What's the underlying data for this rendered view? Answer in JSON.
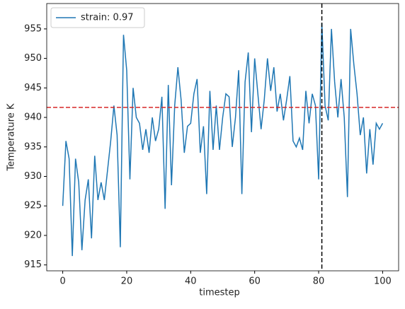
{
  "chart_data": {
    "type": "line",
    "x_label": "timestep",
    "y_label": "Temperature K",
    "x": [
      0,
      1,
      2,
      3,
      4,
      5,
      6,
      7,
      8,
      9,
      10,
      11,
      12,
      13,
      14,
      15,
      16,
      17,
      18,
      19,
      20,
      21,
      22,
      23,
      24,
      25,
      26,
      27,
      28,
      29,
      30,
      31,
      32,
      33,
      34,
      35,
      36,
      37,
      38,
      39,
      40,
      41,
      42,
      43,
      44,
      45,
      46,
      47,
      48,
      49,
      50,
      51,
      52,
      53,
      54,
      55,
      56,
      57,
      58,
      59,
      60,
      61,
      62,
      63,
      64,
      65,
      66,
      67,
      68,
      69,
      70,
      71,
      72,
      73,
      74,
      75,
      76,
      77,
      78,
      79,
      80,
      81,
      82,
      83,
      84,
      85,
      86,
      87,
      88,
      89,
      90,
      91,
      92,
      93,
      94,
      95,
      96,
      97,
      98,
      99,
      100
    ],
    "series": [
      {
        "name": "strain: 0.97",
        "color": "#1f77b4",
        "values": [
          925,
          936,
          933,
          916.5,
          933,
          929,
          917.5,
          926,
          929.5,
          919.5,
          933.5,
          926,
          929,
          926,
          931,
          936,
          942,
          937,
          918,
          954,
          948,
          929.5,
          945,
          940,
          939,
          934.5,
          938,
          934,
          940,
          936,
          938,
          943.5,
          924.5,
          945.5,
          928.5,
          942,
          948.5,
          943,
          934,
          938.5,
          939,
          944,
          946.5,
          934,
          938.5,
          927,
          944.5,
          934.5,
          942,
          934.5,
          940,
          944,
          943.5,
          935,
          940,
          948,
          927,
          946,
          951,
          937.5,
          950,
          944,
          938,
          943,
          950,
          944.5,
          948.5,
          941,
          944,
          939.5,
          943,
          947,
          936,
          935,
          936.5,
          934.5,
          944.5,
          939,
          944,
          942,
          929.5,
          956,
          942,
          939.5,
          955,
          946,
          940,
          946.5,
          940,
          926.5,
          955,
          949,
          944,
          937,
          940,
          930.5,
          938,
          932,
          939,
          938,
          939
        ]
      }
    ],
    "hline": {
      "value": 941.7,
      "color": "#d62728"
    },
    "vline": {
      "value": 81,
      "color": "#000000"
    },
    "xlim": [
      -5,
      105
    ],
    "ylim": [
      914,
      959.3
    ],
    "xticks": [
      0,
      20,
      40,
      60,
      80,
      100
    ],
    "yticks": [
      915,
      920,
      925,
      930,
      935,
      940,
      945,
      950,
      955
    ],
    "legend": "upper-left"
  }
}
